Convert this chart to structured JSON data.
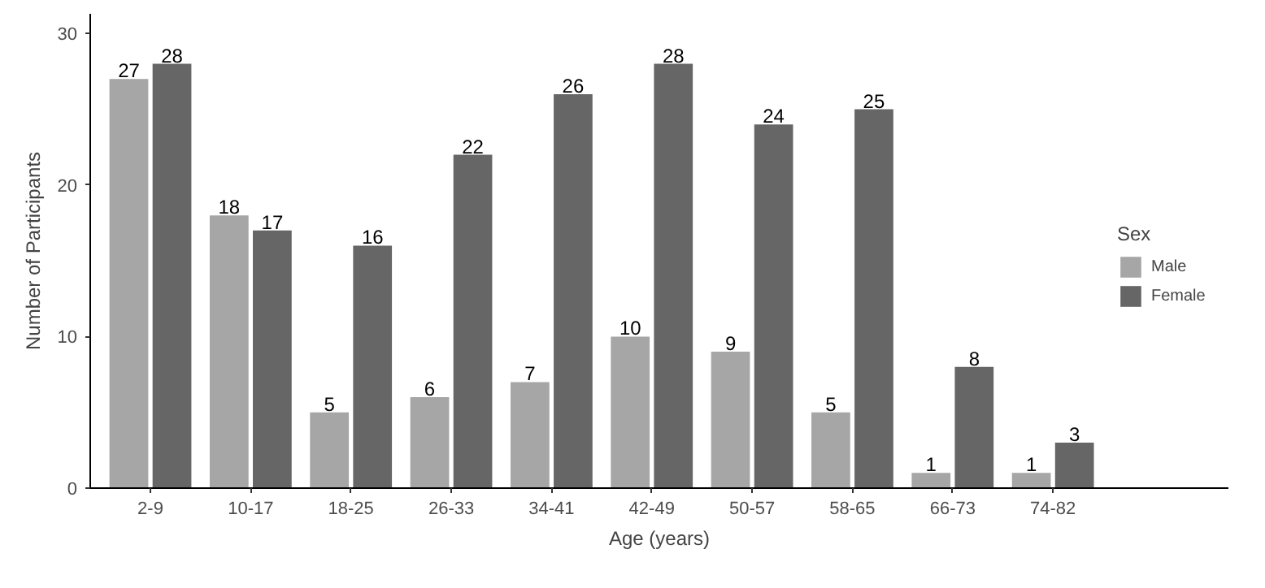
{
  "chart_data": {
    "type": "bar",
    "xlabel": "Age (years)",
    "ylabel": "Number of Participants",
    "legend_title": "Sex",
    "categories": [
      "2-9",
      "10-17",
      "18-25",
      "26-33",
      "34-41",
      "42-49",
      "50-57",
      "58-65",
      "66-73",
      "74-82"
    ],
    "series": [
      {
        "name": "Male",
        "color": "#a6a6a6",
        "values": [
          27,
          18,
          5,
          6,
          7,
          10,
          9,
          5,
          1,
          1
        ]
      },
      {
        "name": "Female",
        "color": "#666666",
        "values": [
          28,
          17,
          16,
          22,
          26,
          28,
          24,
          25,
          8,
          3
        ]
      }
    ],
    "ylim": [
      0,
      31.3
    ],
    "yticks": [
      0,
      10,
      20,
      30
    ],
    "grid": false,
    "legend": "right",
    "data_labels": true
  }
}
